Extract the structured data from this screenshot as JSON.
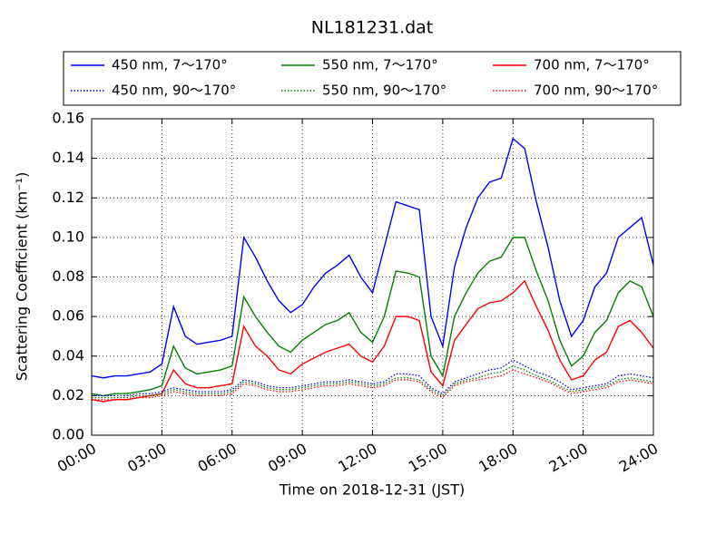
{
  "chart_data": {
    "type": "line",
    "title": "NL181231.dat",
    "xlabel": "Time on 2018-12-31 (JST)",
    "ylabel": "Scattering Coefficient (km⁻¹)",
    "x": [
      0,
      0.5,
      1,
      1.5,
      2,
      2.5,
      3,
      3.5,
      4,
      4.5,
      5,
      5.5,
      6,
      6.5,
      7,
      7.5,
      8,
      8.5,
      9,
      9.5,
      10,
      10.5,
      11,
      11.5,
      12,
      12.5,
      13,
      13.5,
      14,
      14.5,
      15,
      15.5,
      16,
      16.5,
      17,
      17.5,
      18,
      18.5,
      19,
      19.5,
      20,
      20.5,
      21,
      21.5,
      22,
      22.5,
      23,
      23.5,
      24
    ],
    "xlim": [
      0,
      24
    ],
    "xticks": [
      {
        "value": 0,
        "label": "00:00"
      },
      {
        "value": 3,
        "label": "03:00"
      },
      {
        "value": 6,
        "label": "06:00"
      },
      {
        "value": 9,
        "label": "09:00"
      },
      {
        "value": 12,
        "label": "12:00"
      },
      {
        "value": 15,
        "label": "15:00"
      },
      {
        "value": 18,
        "label": "18:00"
      },
      {
        "value": 21,
        "label": "21:00"
      },
      {
        "value": 24,
        "label": "24:00"
      }
    ],
    "ylim": [
      0,
      0.16
    ],
    "yticks": [
      {
        "value": 0,
        "label": "0.00"
      },
      0.02,
      0.04,
      0.06,
      0.08,
      {
        "value": 0.1,
        "label": "0.10"
      },
      0.12,
      0.14,
      0.16
    ],
    "grid": true,
    "legend": "top",
    "series": [
      {
        "name": "450 nm, 7～170°",
        "color": "#0000ff",
        "linestyle": "solid",
        "values": [
          0.03,
          0.029,
          0.03,
          0.03,
          0.031,
          0.032,
          0.036,
          0.065,
          0.05,
          0.046,
          0.047,
          0.048,
          0.05,
          0.1,
          0.09,
          0.078,
          0.068,
          0.062,
          0.066,
          0.075,
          0.082,
          0.086,
          0.091,
          0.08,
          0.072,
          0.095,
          0.118,
          0.116,
          0.114,
          0.06,
          0.045,
          0.085,
          0.105,
          0.12,
          0.128,
          0.13,
          0.15,
          0.145,
          0.118,
          0.095,
          0.068,
          0.05,
          0.058,
          0.075,
          0.082,
          0.1,
          0.105,
          0.11,
          0.086
        ]
      },
      {
        "name": "550 nm, 7～170°",
        "color": "#008000",
        "linestyle": "solid",
        "values": [
          0.021,
          0.02,
          0.021,
          0.021,
          0.022,
          0.023,
          0.025,
          0.045,
          0.034,
          0.031,
          0.032,
          0.033,
          0.035,
          0.07,
          0.06,
          0.052,
          0.045,
          0.042,
          0.048,
          0.052,
          0.056,
          0.058,
          0.062,
          0.052,
          0.047,
          0.06,
          0.083,
          0.082,
          0.08,
          0.04,
          0.03,
          0.06,
          0.072,
          0.082,
          0.088,
          0.09,
          0.1,
          0.1,
          0.083,
          0.068,
          0.048,
          0.035,
          0.04,
          0.052,
          0.058,
          0.072,
          0.078,
          0.075,
          0.06
        ]
      },
      {
        "name": "700 nm, 7～170°",
        "color": "#ff0000",
        "linestyle": "solid",
        "values": [
          0.018,
          0.017,
          0.018,
          0.018,
          0.019,
          0.02,
          0.021,
          0.033,
          0.026,
          0.024,
          0.024,
          0.025,
          0.026,
          0.055,
          0.045,
          0.04,
          0.033,
          0.031,
          0.036,
          0.039,
          0.042,
          0.044,
          0.046,
          0.04,
          0.037,
          0.045,
          0.06,
          0.06,
          0.058,
          0.032,
          0.025,
          0.048,
          0.056,
          0.064,
          0.067,
          0.068,
          0.072,
          0.078,
          0.065,
          0.053,
          0.038,
          0.028,
          0.03,
          0.038,
          0.042,
          0.055,
          0.058,
          0.052,
          0.044
        ]
      },
      {
        "name": "450 nm, 90～170°",
        "color": "#0000ff",
        "linestyle": "dotted",
        "values": [
          0.02,
          0.02,
          0.02,
          0.02,
          0.021,
          0.021,
          0.022,
          0.024,
          0.023,
          0.022,
          0.022,
          0.022,
          0.023,
          0.028,
          0.027,
          0.025,
          0.024,
          0.024,
          0.025,
          0.026,
          0.027,
          0.027,
          0.028,
          0.027,
          0.026,
          0.027,
          0.031,
          0.031,
          0.03,
          0.024,
          0.021,
          0.027,
          0.029,
          0.031,
          0.033,
          0.034,
          0.038,
          0.035,
          0.032,
          0.03,
          0.027,
          0.023,
          0.024,
          0.025,
          0.026,
          0.03,
          0.031,
          0.03,
          0.029
        ]
      },
      {
        "name": "550 nm, 90～170°",
        "color": "#008000",
        "linestyle": "dotted",
        "values": [
          0.019,
          0.019,
          0.019,
          0.019,
          0.02,
          0.02,
          0.021,
          0.023,
          0.022,
          0.021,
          0.021,
          0.021,
          0.022,
          0.027,
          0.026,
          0.024,
          0.023,
          0.023,
          0.024,
          0.025,
          0.026,
          0.026,
          0.027,
          0.026,
          0.025,
          0.026,
          0.029,
          0.029,
          0.028,
          0.023,
          0.02,
          0.026,
          0.028,
          0.029,
          0.031,
          0.032,
          0.035,
          0.033,
          0.03,
          0.028,
          0.025,
          0.022,
          0.023,
          0.024,
          0.025,
          0.028,
          0.029,
          0.028,
          0.027
        ]
      },
      {
        "name": "700 nm, 90～170°",
        "color": "#ff0000",
        "linestyle": "dotted",
        "values": [
          0.018,
          0.018,
          0.018,
          0.018,
          0.019,
          0.019,
          0.02,
          0.022,
          0.021,
          0.02,
          0.02,
          0.02,
          0.021,
          0.026,
          0.025,
          0.023,
          0.022,
          0.022,
          0.023,
          0.024,
          0.025,
          0.025,
          0.026,
          0.025,
          0.024,
          0.025,
          0.028,
          0.028,
          0.027,
          0.022,
          0.019,
          0.025,
          0.027,
          0.028,
          0.029,
          0.03,
          0.033,
          0.031,
          0.029,
          0.027,
          0.024,
          0.021,
          0.022,
          0.023,
          0.024,
          0.027,
          0.028,
          0.027,
          0.026
        ]
      }
    ]
  }
}
